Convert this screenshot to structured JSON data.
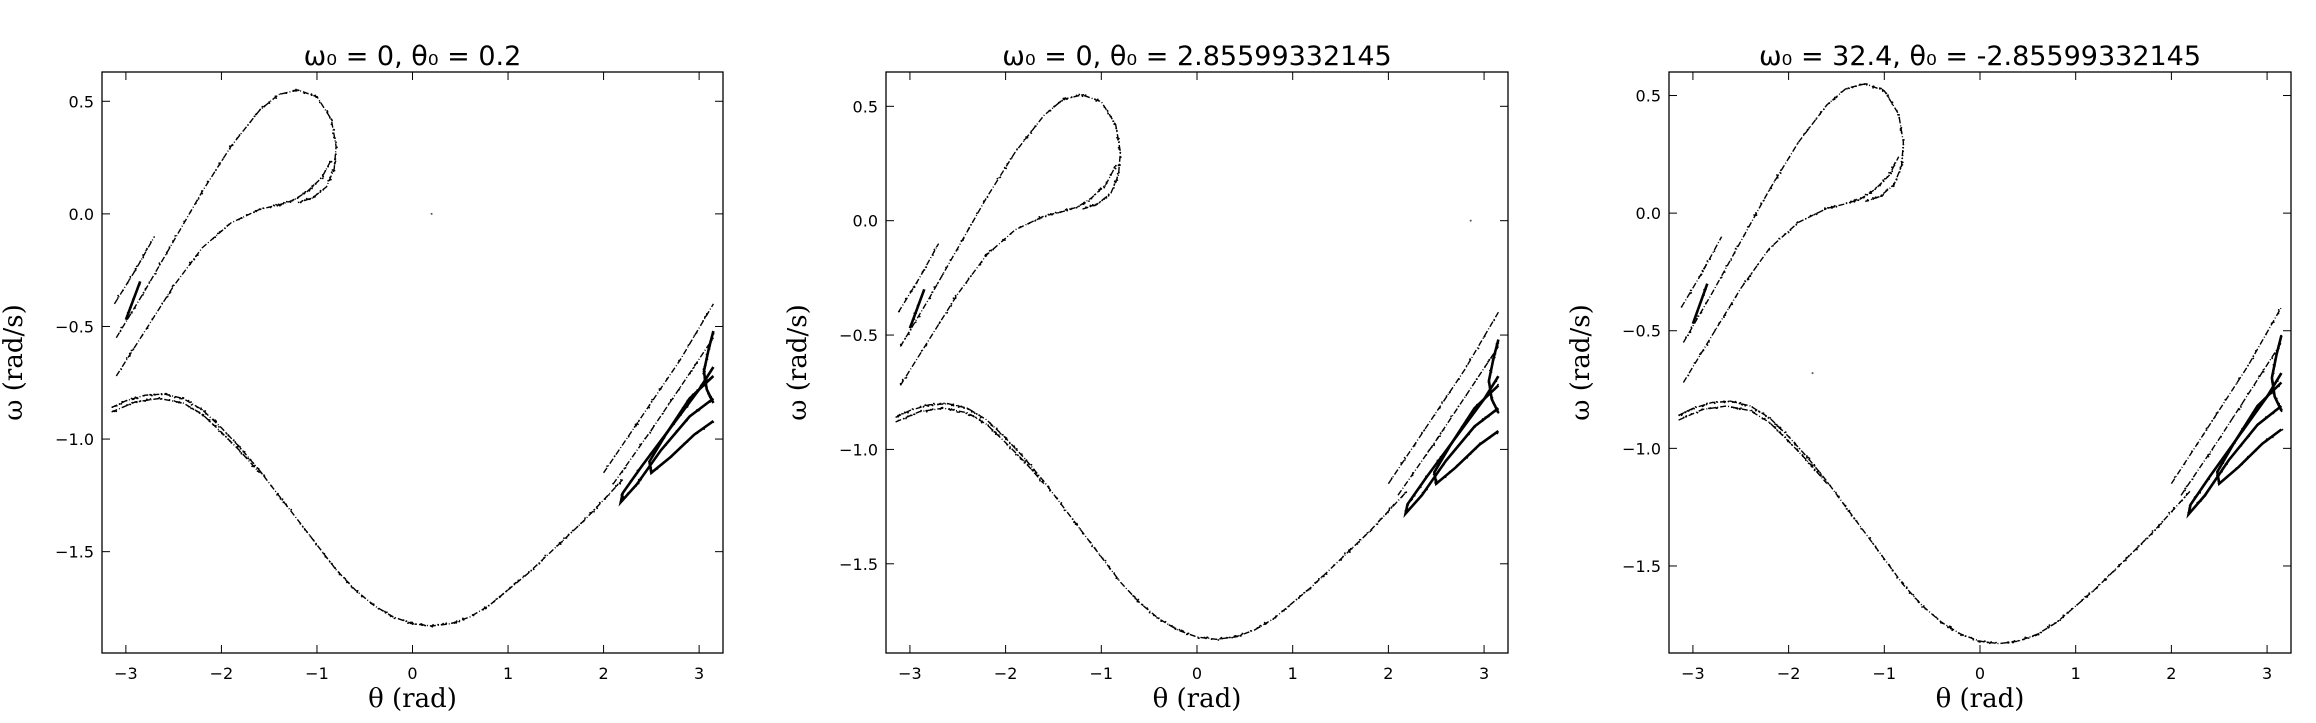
{
  "chart_data": [
    {
      "type": "scatter",
      "title": "ω₀ = 0, θ₀ = 0.2",
      "xlabel": "θ (rad)",
      "ylabel": "ω (rad/s)",
      "xlim": [
        -3.25,
        3.25
      ],
      "ylim": [
        -1.95,
        0.63
      ],
      "xticks": [
        -3,
        -2,
        -1,
        0,
        1,
        2,
        3
      ],
      "yticks": [
        0.5,
        0.0,
        -0.5,
        -1.0,
        -1.5
      ],
      "xtick_labels": [
        "−3",
        "−2",
        "−1",
        "0",
        "1",
        "2",
        "3"
      ],
      "ytick_labels": [
        "0.5",
        "0.0",
        "−0.5",
        "−1.0",
        "−1.5"
      ],
      "grid": false,
      "marker_color": "#000000",
      "stray_points": [
        [
          0.2,
          0.0
        ]
      ]
    },
    {
      "type": "scatter",
      "title": "ω₀ = 0, θ₀ = 2.85599332145",
      "xlabel": "θ (rad)",
      "ylabel": "ω (rad/s)",
      "xlim": [
        -3.25,
        3.25
      ],
      "ylim": [
        -1.89,
        0.65
      ],
      "xticks": [
        -3,
        -2,
        -1,
        0,
        1,
        2,
        3
      ],
      "yticks": [
        0.5,
        0.0,
        -0.5,
        -1.0,
        -1.5
      ],
      "xtick_labels": [
        "−3",
        "−2",
        "−1",
        "0",
        "1",
        "2",
        "3"
      ],
      "ytick_labels": [
        "0.5",
        "0.0",
        "−0.5",
        "−1.0",
        "−1.5"
      ],
      "grid": false,
      "marker_color": "#000000",
      "stray_points": [
        [
          2.86,
          0.0
        ]
      ]
    },
    {
      "type": "scatter",
      "title": "ω₀ = 32.4, θ₀ = -2.85599332145",
      "xlabel": "θ (rad)",
      "ylabel": "ω (rad/s)",
      "xlim": [
        -3.25,
        3.25
      ],
      "ylim": [
        -1.87,
        0.6
      ],
      "xticks": [
        -3,
        -2,
        -1,
        0,
        1,
        2,
        3
      ],
      "yticks": [
        0.5,
        0.0,
        -0.5,
        -1.0,
        -1.5
      ],
      "xtick_labels": [
        "−3",
        "−2",
        "−1",
        "0",
        "1",
        "2",
        "3"
      ],
      "ytick_labels": [
        "0.5",
        "0.0",
        "−0.5",
        "−1.0",
        "−1.5"
      ],
      "grid": false,
      "marker_color": "#000000",
      "stray_points": [
        [
          -1.75,
          -0.68
        ]
      ]
    }
  ],
  "attractor_curves": [
    {
      "name": "lower-hump",
      "points": [
        [
          -3.15,
          -0.86
        ],
        [
          -3.0,
          -0.83
        ],
        [
          -2.8,
          -0.805
        ],
        [
          -2.6,
          -0.8
        ],
        [
          -2.4,
          -0.82
        ],
        [
          -2.2,
          -0.87
        ],
        [
          -2.0,
          -0.95
        ],
        [
          -1.8,
          -1.04
        ],
        [
          -1.6,
          -1.14
        ],
        [
          -1.4,
          -1.25
        ],
        [
          -1.2,
          -1.36
        ],
        [
          -1.0,
          -1.47
        ],
        [
          -0.8,
          -1.58
        ],
        [
          -0.6,
          -1.67
        ],
        [
          -0.4,
          -1.74
        ],
        [
          -0.2,
          -1.79
        ],
        [
          0.0,
          -1.82
        ],
        [
          0.2,
          -1.83
        ],
        [
          0.4,
          -1.82
        ],
        [
          0.6,
          -1.79
        ],
        [
          0.8,
          -1.74
        ],
        [
          1.0,
          -1.67
        ],
        [
          1.2,
          -1.6
        ],
        [
          1.4,
          -1.52
        ],
        [
          1.6,
          -1.44
        ],
        [
          1.8,
          -1.36
        ],
        [
          2.0,
          -1.27
        ],
        [
          2.2,
          -1.18
        ]
      ]
    },
    {
      "name": "lower-hump-inner",
      "points": [
        [
          -3.15,
          -0.88
        ],
        [
          -2.9,
          -0.835
        ],
        [
          -2.65,
          -0.82
        ],
        [
          -2.4,
          -0.84
        ],
        [
          -2.2,
          -0.89
        ],
        [
          -2.0,
          -0.97
        ],
        [
          -1.8,
          -1.055
        ],
        [
          -1.6,
          -1.15
        ]
      ]
    },
    {
      "name": "loop-outer",
      "points": [
        [
          -3.1,
          -0.55
        ],
        [
          -2.8,
          -0.34
        ],
        [
          -2.5,
          -0.12
        ],
        [
          -2.2,
          0.1
        ],
        [
          -1.9,
          0.3
        ],
        [
          -1.6,
          0.46
        ],
        [
          -1.4,
          0.53
        ],
        [
          -1.2,
          0.55
        ],
        [
          -1.0,
          0.52
        ],
        [
          -0.85,
          0.42
        ],
        [
          -0.8,
          0.3
        ],
        [
          -0.82,
          0.2
        ],
        [
          -0.9,
          0.12
        ],
        [
          -1.05,
          0.07
        ],
        [
          -1.2,
          0.05
        ]
      ]
    },
    {
      "name": "loop-inner",
      "points": [
        [
          -3.1,
          -0.72
        ],
        [
          -2.8,
          -0.52
        ],
        [
          -2.5,
          -0.32
        ],
        [
          -2.2,
          -0.15
        ],
        [
          -1.9,
          -0.04
        ],
        [
          -1.6,
          0.02
        ],
        [
          -1.4,
          0.04
        ],
        [
          -1.25,
          0.06
        ],
        [
          -1.1,
          0.1
        ],
        [
          -0.95,
          0.16
        ],
        [
          -0.85,
          0.24
        ]
      ]
    },
    {
      "name": "loop-left-strand",
      "points": [
        [
          -3.12,
          -0.4
        ],
        [
          -2.9,
          -0.25
        ],
        [
          -2.7,
          -0.1
        ]
      ]
    },
    {
      "name": "left-thick-segment",
      "points": [
        [
          -3.0,
          -0.47
        ],
        [
          -2.85,
          -0.3
        ]
      ]
    },
    {
      "name": "right-strand-1",
      "points": [
        [
          2.0,
          -1.15
        ],
        [
          2.4,
          -0.9
        ],
        [
          2.8,
          -0.65
        ],
        [
          3.15,
          -0.4
        ]
      ]
    },
    {
      "name": "right-strand-2",
      "points": [
        [
          2.1,
          -1.2
        ],
        [
          2.5,
          -0.96
        ],
        [
          2.85,
          -0.74
        ],
        [
          3.15,
          -0.55
        ]
      ]
    },
    {
      "name": "right-hook",
      "points": [
        [
          3.15,
          -0.82
        ],
        [
          2.9,
          -0.9
        ],
        [
          2.6,
          -1.05
        ],
        [
          2.35,
          -1.2
        ],
        [
          2.18,
          -1.28
        ],
        [
          2.2,
          -1.24
        ],
        [
          2.4,
          -1.12
        ],
        [
          2.7,
          -0.95
        ],
        [
          3.0,
          -0.78
        ],
        [
          3.15,
          -0.68
        ]
      ]
    },
    {
      "name": "right-hook-2",
      "points": [
        [
          3.15,
          -0.92
        ],
        [
          2.95,
          -0.98
        ],
        [
          2.7,
          -1.08
        ],
        [
          2.5,
          -1.15
        ],
        [
          2.48,
          -1.1
        ],
        [
          2.65,
          -0.98
        ],
        [
          2.9,
          -0.82
        ],
        [
          3.15,
          -0.72
        ]
      ]
    },
    {
      "name": "right-thick-tail",
      "points": [
        [
          3.15,
          -0.84
        ],
        [
          3.08,
          -0.78
        ],
        [
          3.05,
          -0.7
        ],
        [
          3.1,
          -0.6
        ],
        [
          3.15,
          -0.52
        ]
      ]
    }
  ]
}
